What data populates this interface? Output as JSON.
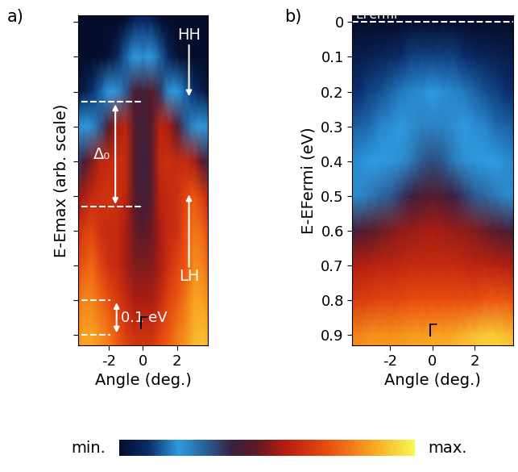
{
  "chart_data": [
    {
      "type": "heatmap",
      "title": "a)",
      "xlabel": "Angle (deg.)",
      "ylabel": "E-Emax (arb. scale)",
      "xlim": [
        -3.8,
        3.8
      ],
      "xticks": [
        -2,
        0,
        2
      ],
      "ylim": [
        0.93,
        -0.02
      ],
      "yticks": [
        0,
        0.1,
        0.2,
        0.3,
        0.4,
        0.5,
        0.6,
        0.7,
        0.8,
        0.9
      ],
      "tick_labels": "x",
      "x": [
        -4,
        -3.5,
        -3,
        -2.5,
        -2,
        -1.5,
        -1,
        -0.5,
        0,
        0.5,
        1,
        1.5,
        2,
        2.5,
        3,
        3.5,
        4
      ],
      "y": [
        -0.1,
        0,
        0.1,
        0.2,
        0.3,
        0.4,
        0.5,
        0.6,
        0.7,
        0.8,
        0.9,
        1.0
      ],
      "cells": [
        [
          0,
          0,
          0,
          0,
          0,
          0,
          0,
          0,
          0,
          0,
          0,
          0,
          0,
          0,
          0,
          0,
          0
        ],
        [
          0,
          0,
          0,
          0,
          0,
          0,
          0.02,
          0.08,
          0.1,
          0.08,
          0.02,
          0,
          0,
          0,
          0,
          0,
          0
        ],
        [
          0,
          0,
          0,
          0,
          0.02,
          0.08,
          0.15,
          0.2,
          0.22,
          0.2,
          0.15,
          0.08,
          0.02,
          0,
          0,
          0,
          0
        ],
        [
          0.02,
          0.05,
          0.1,
          0.15,
          0.2,
          0.22,
          0.3,
          0.42,
          0.4,
          0.45,
          0.35,
          0.22,
          0.2,
          0.15,
          0.1,
          0.05,
          0.02
        ],
        [
          0.18,
          0.2,
          0.22,
          0.3,
          0.45,
          0.55,
          0.58,
          0.45,
          0.4,
          0.45,
          0.58,
          0.55,
          0.45,
          0.3,
          0.22,
          0.2,
          0.18
        ],
        [
          0.3,
          0.4,
          0.5,
          0.58,
          0.6,
          0.62,
          0.6,
          0.45,
          0.38,
          0.45,
          0.6,
          0.62,
          0.6,
          0.6,
          0.55,
          0.45,
          0.35
        ],
        [
          0.5,
          0.55,
          0.6,
          0.62,
          0.63,
          0.62,
          0.58,
          0.45,
          0.4,
          0.45,
          0.58,
          0.6,
          0.62,
          0.68,
          0.72,
          0.65,
          0.55
        ],
        [
          0.6,
          0.65,
          0.68,
          0.62,
          0.6,
          0.6,
          0.55,
          0.48,
          0.45,
          0.48,
          0.55,
          0.6,
          0.62,
          0.7,
          0.78,
          0.75,
          0.65
        ],
        [
          0.68,
          0.72,
          0.75,
          0.68,
          0.62,
          0.6,
          0.55,
          0.5,
          0.5,
          0.5,
          0.55,
          0.62,
          0.68,
          0.72,
          0.82,
          0.8,
          0.72
        ],
        [
          0.75,
          0.8,
          0.8,
          0.75,
          0.7,
          0.65,
          0.6,
          0.55,
          0.55,
          0.55,
          0.6,
          0.68,
          0.72,
          0.78,
          0.85,
          0.85,
          0.8
        ],
        [
          0.8,
          0.85,
          0.85,
          0.82,
          0.78,
          0.72,
          0.66,
          0.62,
          0.62,
          0.62,
          0.68,
          0.72,
          0.78,
          0.82,
          0.88,
          0.9,
          0.85
        ],
        [
          0.82,
          0.86,
          0.86,
          0.84,
          0.8,
          0.75,
          0.7,
          0.66,
          0.66,
          0.66,
          0.7,
          0.75,
          0.8,
          0.84,
          0.9,
          0.92,
          0.88
        ]
      ],
      "arrows": [
        {
          "text": "HH",
          "x": 2.7,
          "y": 0.22,
          "text_y": 0.06
        },
        {
          "text": "LH",
          "x": 2.7,
          "y": 0.49,
          "text_y": 0.71
        }
      ],
      "brackets": [
        {
          "text": "Δ₀",
          "y": [
            0.23,
            0.53
          ]
        },
        {
          "text": "0.1 eV",
          "y": [
            0.8,
            0.9
          ]
        }
      ],
      "labels": [
        {
          "text": "Γ",
          "x": 0,
          "y": 0.87
        }
      ]
    },
    {
      "type": "heatmap",
      "title": "b)",
      "xlabel": "Angle (deg.)",
      "ylabel": "E-EFermi (eV)",
      "xlim": [
        -3.8,
        3.8
      ],
      "xticks": [
        -2,
        0,
        2
      ],
      "ylim": [
        0.93,
        -0.02
      ],
      "yticks": [
        0,
        0.1,
        0.2,
        0.3,
        0.4,
        0.5,
        0.6,
        0.7,
        0.8,
        0.9
      ],
      "x": [
        -4,
        -3.5,
        -3,
        -2.5,
        -2,
        -1.5,
        -1,
        -0.5,
        0,
        0.5,
        1,
        1.5,
        2,
        2.5,
        3,
        3.5,
        4
      ],
      "y": [
        -0.1,
        0,
        0.1,
        0.2,
        0.3,
        0.4,
        0.5,
        0.6,
        0.7,
        0.8,
        0.9,
        1.0
      ],
      "cells": [
        [
          0,
          0,
          0,
          0,
          0,
          0,
          0,
          0,
          0,
          0,
          0,
          0,
          0,
          0,
          0,
          0,
          0
        ],
        [
          0,
          0,
          0,
          0,
          0,
          0,
          0,
          0,
          0,
          0,
          0,
          0,
          0,
          0,
          0,
          0,
          0
        ],
        [
          0.05,
          0.05,
          0.06,
          0.07,
          0.08,
          0.1,
          0.12,
          0.12,
          0.12,
          0.12,
          0.12,
          0.1,
          0.08,
          0.07,
          0.06,
          0.05,
          0.05
        ],
        [
          0.1,
          0.1,
          0.12,
          0.13,
          0.15,
          0.17,
          0.18,
          0.19,
          0.2,
          0.19,
          0.18,
          0.17,
          0.15,
          0.13,
          0.12,
          0.1,
          0.1
        ],
        [
          0.14,
          0.15,
          0.16,
          0.18,
          0.19,
          0.2,
          0.22,
          0.24,
          0.24,
          0.24,
          0.22,
          0.2,
          0.19,
          0.18,
          0.16,
          0.15,
          0.14
        ],
        [
          0.18,
          0.19,
          0.2,
          0.2,
          0.21,
          0.22,
          0.25,
          0.3,
          0.32,
          0.3,
          0.25,
          0.22,
          0.21,
          0.2,
          0.2,
          0.19,
          0.18
        ],
        [
          0.22,
          0.23,
          0.25,
          0.28,
          0.3,
          0.34,
          0.38,
          0.42,
          0.44,
          0.42,
          0.38,
          0.34,
          0.3,
          0.28,
          0.25,
          0.23,
          0.22
        ],
        [
          0.4,
          0.42,
          0.45,
          0.48,
          0.5,
          0.52,
          0.53,
          0.54,
          0.55,
          0.54,
          0.53,
          0.52,
          0.5,
          0.48,
          0.45,
          0.42,
          0.4
        ],
        [
          0.55,
          0.56,
          0.57,
          0.58,
          0.58,
          0.59,
          0.6,
          0.6,
          0.6,
          0.6,
          0.6,
          0.59,
          0.58,
          0.58,
          0.57,
          0.56,
          0.55
        ],
        [
          0.65,
          0.66,
          0.67,
          0.68,
          0.68,
          0.69,
          0.7,
          0.7,
          0.7,
          0.7,
          0.7,
          0.7,
          0.7,
          0.72,
          0.72,
          0.72,
          0.7
        ],
        [
          0.8,
          0.8,
          0.82,
          0.82,
          0.82,
          0.83,
          0.84,
          0.84,
          0.85,
          0.85,
          0.86,
          0.88,
          0.9,
          0.92,
          0.92,
          0.9,
          0.88
        ],
        [
          0.85,
          0.85,
          0.86,
          0.86,
          0.86,
          0.87,
          0.88,
          0.88,
          0.9,
          0.9,
          0.92,
          0.93,
          0.95,
          0.96,
          0.96,
          0.95,
          0.92
        ]
      ],
      "lines": [
        {
          "text": "EFermi",
          "y": 0
        }
      ],
      "labels": [
        {
          "text": "Γ",
          "x": 0,
          "y": 0.89
        }
      ]
    }
  ],
  "colorbar": {
    "range": [
      0,
      1
    ],
    "ticks": [
      {
        "value": 0,
        "label": "min."
      },
      {
        "value": 1,
        "label": "max."
      }
    ]
  }
}
